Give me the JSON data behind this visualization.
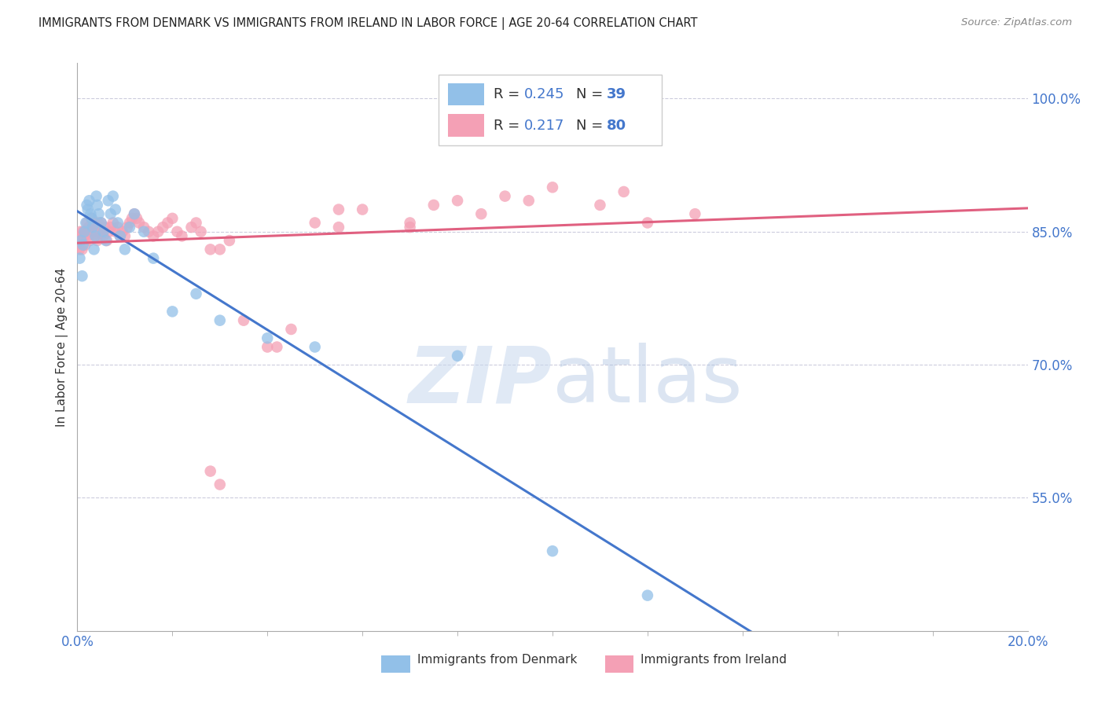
{
  "title": "IMMIGRANTS FROM DENMARK VS IMMIGRANTS FROM IRELAND IN LABOR FORCE | AGE 20-64 CORRELATION CHART",
  "source": "Source: ZipAtlas.com",
  "ylabel": "In Labor Force | Age 20-64",
  "right_yticks": [
    55.0,
    70.0,
    85.0,
    100.0
  ],
  "xlim": [
    0.0,
    20.0
  ],
  "ylim": [
    40.0,
    104.0
  ],
  "color_denmark": "#92c0e8",
  "color_ireland": "#f4a0b5",
  "color_denmark_line": "#4477cc",
  "color_ireland_line": "#e06080",
  "background_color": "#ffffff",
  "dk_x": [
    0.05,
    0.08,
    0.1,
    0.12,
    0.15,
    0.18,
    0.2,
    0.22,
    0.25,
    0.28,
    0.3,
    0.32,
    0.35,
    0.38,
    0.4,
    0.42,
    0.45,
    0.5,
    0.55,
    0.6,
    0.65,
    0.7,
    0.75,
    0.8,
    0.85,
    0.9,
    1.0,
    1.1,
    1.2,
    1.4,
    1.6,
    2.0,
    2.5,
    3.0,
    4.0,
    5.0,
    8.0,
    10.0,
    12.0
  ],
  "dk_y": [
    82.0,
    84.0,
    80.0,
    83.5,
    85.0,
    86.0,
    88.0,
    87.5,
    88.5,
    87.0,
    86.5,
    85.5,
    83.0,
    84.5,
    89.0,
    88.0,
    87.0,
    86.0,
    85.0,
    84.0,
    88.5,
    87.0,
    89.0,
    87.5,
    86.0,
    84.5,
    83.0,
    85.5,
    87.0,
    85.0,
    82.0,
    76.0,
    78.0,
    75.0,
    73.0,
    72.0,
    71.0,
    49.0,
    44.0
  ],
  "ir_x": [
    0.02,
    0.04,
    0.06,
    0.08,
    0.1,
    0.12,
    0.14,
    0.16,
    0.18,
    0.2,
    0.22,
    0.24,
    0.26,
    0.28,
    0.3,
    0.32,
    0.34,
    0.36,
    0.38,
    0.4,
    0.42,
    0.44,
    0.46,
    0.48,
    0.5,
    0.52,
    0.55,
    0.58,
    0.62,
    0.66,
    0.7,
    0.75,
    0.8,
    0.85,
    0.9,
    0.95,
    1.0,
    1.05,
    1.1,
    1.15,
    1.2,
    1.25,
    1.3,
    1.4,
    1.5,
    1.6,
    1.7,
    1.8,
    1.9,
    2.0,
    2.1,
    2.2,
    2.4,
    2.6,
    2.8,
    3.0,
    3.2,
    3.5,
    4.0,
    4.5,
    5.0,
    5.5,
    6.0,
    7.0,
    7.5,
    8.0,
    8.5,
    9.0,
    9.5,
    10.0,
    11.0,
    11.5,
    12.0,
    13.0,
    2.5,
    3.0,
    5.5,
    7.0,
    2.8,
    4.2
  ],
  "ir_y": [
    84.0,
    83.0,
    85.0,
    84.5,
    83.0,
    85.0,
    84.5,
    83.5,
    85.0,
    86.0,
    84.5,
    85.5,
    84.0,
    85.0,
    86.5,
    85.5,
    85.0,
    86.0,
    84.5,
    85.5,
    84.0,
    86.0,
    85.0,
    84.5,
    86.0,
    85.0,
    84.5,
    85.5,
    84.0,
    85.0,
    85.5,
    86.0,
    85.0,
    85.5,
    84.5,
    85.0,
    84.5,
    85.5,
    86.0,
    86.5,
    87.0,
    86.5,
    86.0,
    85.5,
    85.0,
    84.5,
    85.0,
    85.5,
    86.0,
    86.5,
    85.0,
    84.5,
    85.5,
    85.0,
    58.0,
    56.5,
    84.0,
    75.0,
    72.0,
    74.0,
    86.0,
    85.5,
    87.5,
    86.0,
    88.0,
    88.5,
    87.0,
    89.0,
    88.5,
    90.0,
    88.0,
    89.5,
    86.0,
    87.0,
    86.0,
    83.0,
    87.5,
    85.5,
    83.0,
    72.0
  ]
}
